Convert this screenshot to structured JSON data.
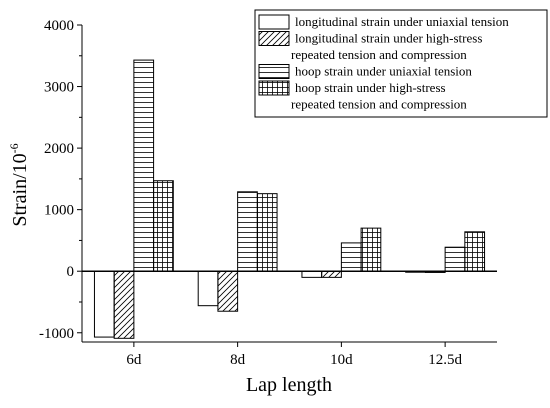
{
  "chart_data": {
    "type": "bar",
    "xlabel": "Lap length",
    "ylabel_base": "Strain/10",
    "ylabel_exp": "-6",
    "ylim": [
      -1150,
      4000
    ],
    "yticks": [
      -1000,
      0,
      1000,
      2000,
      3000,
      4000
    ],
    "yminor_ticks": [
      -500,
      500,
      1500,
      2500,
      3500
    ],
    "categories": [
      "6d",
      "8d",
      "10d",
      "12.5d"
    ],
    "legend_position": "top-right",
    "series": [
      {
        "name": "longitudinal strain under uniaxial tension",
        "legend_lines": [
          "longitudinal strain under uniaxial tension"
        ],
        "pattern": "none",
        "values": [
          -1070,
          -560,
          -100,
          -10
        ]
      },
      {
        "name": "longitudinal strain under high-stress repeated tension and compression",
        "legend_lines": [
          "longitudinal strain under high-stress",
          "repeated tension and compression"
        ],
        "pattern": "diagonal",
        "values": [
          -1090,
          -650,
          -100,
          -20
        ]
      },
      {
        "name": "hoop strain under uniaxial tension",
        "legend_lines": [
          "hoop strain under uniaxial tension"
        ],
        "pattern": "horizontal",
        "values": [
          3430,
          1290,
          460,
          390
        ]
      },
      {
        "name": "hoop strain under high-stress repeated tension and compression",
        "legend_lines": [
          "hoop strain under high-stress",
          "repeated tension and compression"
        ],
        "pattern": "grid",
        "values": [
          1470,
          1260,
          700,
          640
        ]
      }
    ]
  }
}
